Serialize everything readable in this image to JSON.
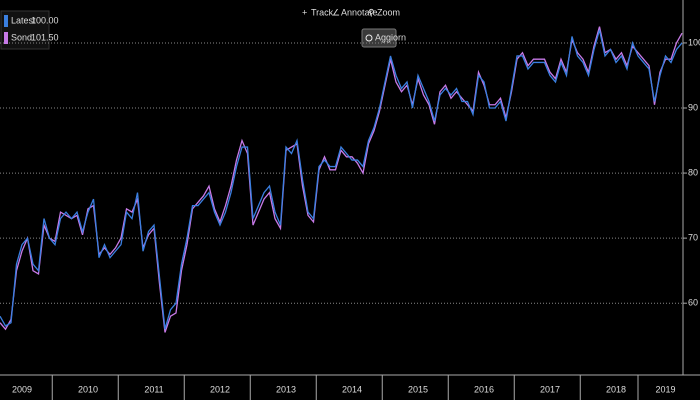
{
  "toolbar": {
    "items": [
      "Track",
      "Annotare",
      "Zoom"
    ],
    "button": "Aggiorn"
  },
  "chart_data": {
    "type": "line",
    "categories": [
      null,
      null,
      null,
      null,
      "2009",
      null,
      null,
      null,
      null,
      null,
      null,
      null,
      null,
      null,
      null,
      null,
      "2010",
      null,
      null,
      null,
      null,
      null,
      null,
      null,
      null,
      null,
      null,
      null,
      "2011",
      null,
      null,
      null,
      null,
      null,
      null,
      null,
      null,
      null,
      null,
      null,
      "2012",
      null,
      null,
      null,
      null,
      null,
      null,
      null,
      null,
      null,
      null,
      null,
      "2013",
      null,
      null,
      null,
      null,
      null,
      null,
      null,
      null,
      null,
      null,
      null,
      "2014",
      null,
      null,
      null,
      null,
      null,
      null,
      null,
      null,
      null,
      null,
      null,
      "2015",
      null,
      null,
      null,
      null,
      null,
      null,
      null,
      null,
      null,
      null,
      null,
      "2016",
      null,
      null,
      null,
      null,
      null,
      null,
      null,
      null,
      null,
      null,
      null,
      "2017",
      null,
      null,
      null,
      null,
      null,
      null,
      null,
      null,
      null,
      null,
      null,
      "2018",
      null,
      null,
      null,
      null,
      null,
      null,
      null,
      null,
      "2019",
      null,
      null,
      null
    ],
    "series": [
      {
        "name": "Latest",
        "latest_label": "100.00",
        "color": "#3a7fe0",
        "values": [
          58,
          56.5,
          57,
          66,
          69,
          70,
          66,
          65,
          73,
          70,
          69,
          73,
          74,
          73,
          74,
          71,
          74,
          76,
          67,
          69,
          67,
          68,
          69,
          74,
          73,
          77,
          68,
          71,
          72,
          64,
          56,
          59,
          60,
          66,
          70,
          75,
          75,
          76,
          77,
          74,
          72,
          74,
          77,
          81,
          84,
          84,
          73,
          75,
          77,
          78,
          74,
          72,
          84,
          83,
          85,
          79,
          74,
          73,
          81,
          82,
          81,
          81,
          84,
          83,
          82,
          82,
          81,
          85,
          87,
          90,
          94,
          98,
          95,
          93,
          94,
          90,
          95,
          93,
          91,
          88,
          92,
          93,
          92,
          93,
          91,
          91,
          89,
          95,
          94,
          90,
          90,
          91,
          88,
          93,
          98,
          98,
          96,
          97,
          97,
          97,
          95,
          94,
          97,
          95,
          101,
          98,
          97,
          95,
          99,
          102,
          98,
          99,
          97,
          98,
          96,
          100,
          98,
          97,
          96,
          91,
          95,
          98,
          97,
          99,
          100
        ]
      },
      {
        "name": "Sond",
        "latest_label": "101.50",
        "color": "#c77ae8",
        "values": [
          57,
          56,
          57.5,
          65,
          68,
          70,
          65,
          64.5,
          72,
          70,
          69.5,
          74,
          73.5,
          73,
          73.5,
          70.5,
          74.5,
          75,
          67.5,
          68.5,
          67.5,
          68.5,
          70,
          74.5,
          74,
          76,
          68.5,
          70.5,
          71.5,
          63,
          55.5,
          58,
          58.5,
          65,
          69,
          74.5,
          75.5,
          76.5,
          78,
          74.5,
          72.5,
          75,
          78,
          82,
          85,
          83,
          72,
          74,
          76,
          77,
          73,
          71.5,
          83.5,
          84,
          84.5,
          78,
          73.5,
          72.5,
          80.5,
          82.5,
          80.5,
          80.5,
          83.5,
          82.5,
          82.5,
          81.5,
          80,
          84.5,
          86.5,
          89.5,
          93.5,
          97.5,
          94,
          92.5,
          93.5,
          90.5,
          94.5,
          92,
          90.5,
          87.5,
          92.5,
          93.5,
          91.5,
          92.5,
          91.5,
          90.5,
          89.5,
          95.5,
          93.5,
          90.5,
          90.5,
          91.5,
          88.5,
          92.5,
          97.5,
          98.5,
          96.5,
          97.5,
          97.5,
          97.5,
          95.5,
          94.5,
          97.5,
          95.5,
          100.5,
          98.5,
          97.5,
          95.5,
          99.5,
          102.5,
          98.5,
          99,
          97.5,
          98.5,
          96.5,
          99.5,
          98.5,
          97.5,
          96.5,
          90.5,
          95.5,
          97.5,
          97.5,
          100,
          101.5
        ]
      }
    ],
    "ylim": [
      50.5,
      106.6
    ],
    "yticks": [
      60,
      70,
      80,
      90,
      100
    ],
    "grid": true
  }
}
